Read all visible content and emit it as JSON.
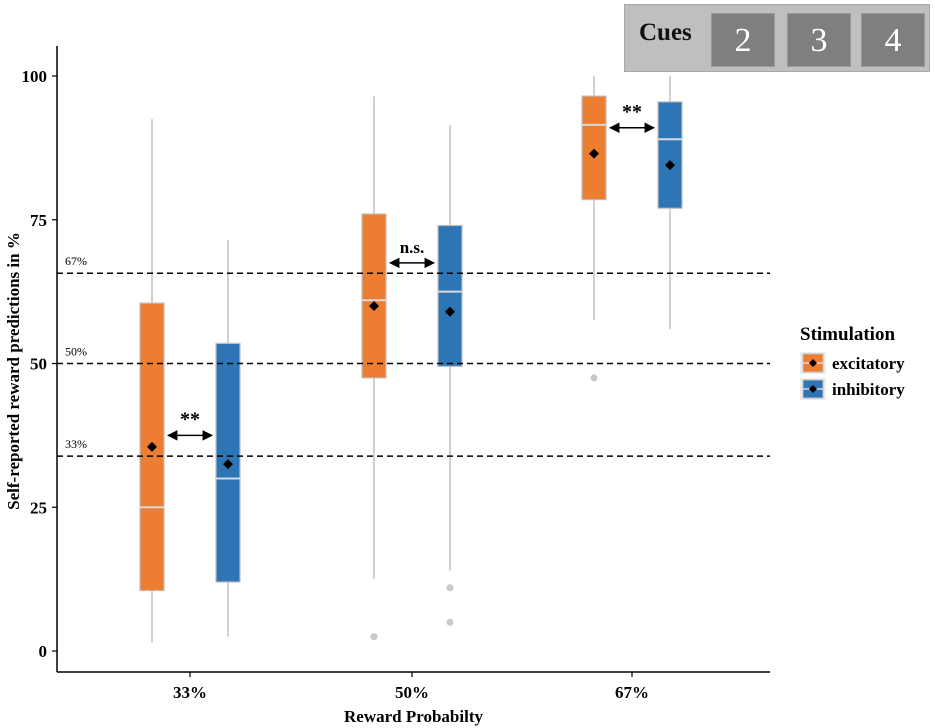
{
  "chart_data": {
    "type": "box",
    "title": "",
    "xlabel": "Reward Probabilty",
    "ylabel": "Self-reported reward predictions in %",
    "ylim": [
      0,
      100
    ],
    "yticks": [
      0,
      25,
      50,
      75,
      100
    ],
    "categories": [
      "33%",
      "50%",
      "67%"
    ],
    "legend": {
      "title": "Stimulation",
      "position": "right",
      "entries": [
        "excitatory",
        "inhibitory"
      ]
    },
    "series": [
      {
        "name": "excitatory",
        "color": "#ED7D31",
        "boxes": [
          {
            "category": "33%",
            "min": 1.5,
            "q1": 10.5,
            "median": 25,
            "q3": 60.5,
            "max": 92.5,
            "mean": 35.5,
            "outliers": []
          },
          {
            "category": "50%",
            "min": 12.5,
            "q1": 47.5,
            "median": 61,
            "q3": 76,
            "max": 96.5,
            "mean": 60,
            "outliers": [
              2.5
            ]
          },
          {
            "category": "67%",
            "min": 57.5,
            "q1": 78.5,
            "median": 91.5,
            "q3": 96.5,
            "max": 100,
            "mean": 86.5,
            "outliers": [
              47.5
            ]
          }
        ]
      },
      {
        "name": "inhibitory",
        "color": "#2E75B6",
        "boxes": [
          {
            "category": "33%",
            "min": 2.5,
            "q1": 12,
            "median": 30,
            "q3": 53.5,
            "max": 71.5,
            "mean": 32.5,
            "outliers": []
          },
          {
            "category": "50%",
            "min": 14,
            "q1": 49.5,
            "median": 62.5,
            "q3": 74,
            "max": 91.5,
            "mean": 59,
            "outliers": [
              11,
              5
            ]
          },
          {
            "category": "67%",
            "min": 56,
            "q1": 77,
            "median": 89,
            "q3": 95.5,
            "max": 100,
            "mean": 84.5,
            "outliers": []
          }
        ]
      }
    ],
    "reference_lines": [
      {
        "value": 65.7,
        "label": "67%"
      },
      {
        "value": 50,
        "label": "50%"
      },
      {
        "value": 33.9,
        "label": "33%"
      }
    ],
    "annotations": [
      {
        "category": "33%",
        "text": "**"
      },
      {
        "category": "50%",
        "text": "n.s."
      },
      {
        "category": "67%",
        "text": "**"
      }
    ]
  },
  "cues": {
    "label": "Cues",
    "buttons": [
      "2",
      "3",
      "4"
    ]
  }
}
